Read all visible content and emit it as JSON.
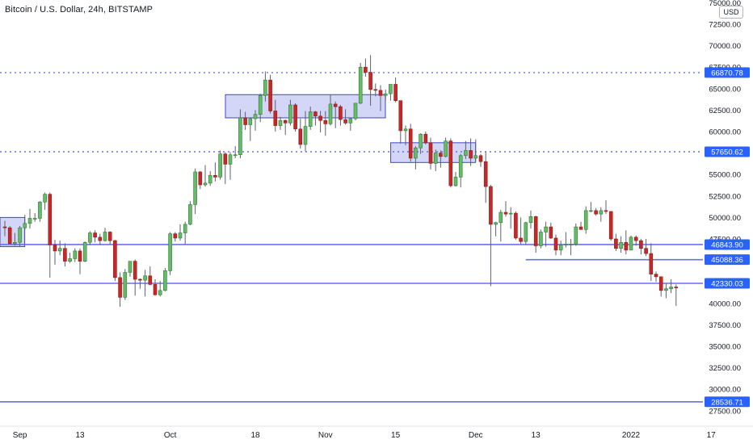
{
  "header": {
    "title": "Bitcoin / U.S. Dollar, 24h, BITSTAMP",
    "currency": "USD"
  },
  "colors": {
    "up": "#4caf50",
    "up_fill": "#66bb6a",
    "down": "#e53935",
    "down_fill": "#c62828",
    "wick": "#5d606b",
    "level_line": "#6a6fe8",
    "level_label_bg": "#2962ff",
    "zone_fill": "#c5c8f5",
    "zone_border": "#3f44c8",
    "axis_text": "#131722"
  },
  "chart_data": {
    "type": "candlestick",
    "symbol": "Bitcoin / U.S. Dollar",
    "interval": "24h",
    "exchange": "BITSTAMP",
    "y_axis": {
      "ticks": [
        27500,
        30000,
        32500,
        35000,
        37500,
        40000,
        42500,
        45000,
        47500,
        50000,
        52500,
        55000,
        57500,
        60000,
        62500,
        65000,
        67500,
        70000,
        72500,
        75000
      ],
      "tick_labels": [
        "27500.00",
        "30000.00",
        "32500.00",
        "35000.00",
        "37500.00",
        "40000.00",
        "42500.00",
        "45000.00",
        "47500.00",
        "50000.00",
        "52500.00",
        "55000.00",
        "57500.00",
        "60000.00",
        "62500.00",
        "65000.00",
        "67500.00",
        "70000.00",
        "72500.00",
        "75000.00"
      ],
      "ylim": [
        26800,
        76200
      ]
    },
    "x_axis": {
      "tick_labels": [
        "Sep",
        "13",
        "Oct",
        "18",
        "Nov",
        "15",
        "Dec",
        "13",
        "2022",
        "17"
      ],
      "tick_dates": [
        "2021-09-01",
        "2021-09-13",
        "2021-10-01",
        "2021-10-18",
        "2021-11-01",
        "2021-11-15",
        "2021-12-01",
        "2021-12-13",
        "2022-01-01",
        "2022-01-17"
      ]
    },
    "levels": [
      {
        "value": 66870.78,
        "label": "66870.78",
        "style": "dotted"
      },
      {
        "value": 57650.62,
        "label": "57650.62",
        "style": "dotted"
      },
      {
        "value": 46843.9,
        "label": "46843.90",
        "style": "solid"
      },
      {
        "value": 45088.36,
        "label": "45088.36",
        "style": "solid",
        "from_date": "2021-12-11"
      },
      {
        "value": 42330.03,
        "label": "42330.03",
        "style": "solid"
      },
      {
        "value": 28536.71,
        "label": "28536.71",
        "style": "solid"
      }
    ],
    "zones": [
      {
        "from_date": "2021-08-29",
        "to_date": "2021-09-01",
        "low": 46600,
        "high": 50000
      },
      {
        "from_date": "2021-10-13",
        "to_date": "2021-11-12",
        "low": 61600,
        "high": 64300
      },
      {
        "from_date": "2021-11-15",
        "to_date": "2021-11-30",
        "low": 56400,
        "high": 58700
      }
    ],
    "candles_note": "OHLC in USD, daily, estimated from gridlines",
    "candles": [
      {
        "date": "2021-08-29",
        "o": 48900,
        "h": 49600,
        "l": 47800,
        "c": 48800
      },
      {
        "date": "2021-08-30",
        "o": 48800,
        "h": 49000,
        "l": 46900,
        "c": 46950
      },
      {
        "date": "2021-08-31",
        "o": 46950,
        "h": 48200,
        "l": 46700,
        "c": 47100
      },
      {
        "date": "2021-09-01",
        "o": 47100,
        "h": 49000,
        "l": 46600,
        "c": 48800
      },
      {
        "date": "2021-09-02",
        "o": 48800,
        "h": 50300,
        "l": 48500,
        "c": 49300
      },
      {
        "date": "2021-09-03",
        "o": 49300,
        "h": 51000,
        "l": 48700,
        "c": 49900
      },
      {
        "date": "2021-09-04",
        "o": 49900,
        "h": 50500,
        "l": 49500,
        "c": 49900
      },
      {
        "date": "2021-09-05",
        "o": 49900,
        "h": 51900,
        "l": 49500,
        "c": 51800
      },
      {
        "date": "2021-09-06",
        "o": 51800,
        "h": 52900,
        "l": 50900,
        "c": 52700
      },
      {
        "date": "2021-09-07",
        "o": 52700,
        "h": 52900,
        "l": 43000,
        "c": 46800
      },
      {
        "date": "2021-09-08",
        "o": 46800,
        "h": 47400,
        "l": 44500,
        "c": 46100
      },
      {
        "date": "2021-09-09",
        "o": 46100,
        "h": 47300,
        "l": 45600,
        "c": 46400
      },
      {
        "date": "2021-09-10",
        "o": 46400,
        "h": 47000,
        "l": 44300,
        "c": 44900
      },
      {
        "date": "2021-09-11",
        "o": 44900,
        "h": 45900,
        "l": 44700,
        "c": 45200
      },
      {
        "date": "2021-09-12",
        "o": 45200,
        "h": 46400,
        "l": 44800,
        "c": 46100
      },
      {
        "date": "2021-09-13",
        "o": 46100,
        "h": 46400,
        "l": 43400,
        "c": 44900
      },
      {
        "date": "2021-09-14",
        "o": 44900,
        "h": 47200,
        "l": 44800,
        "c": 47100
      },
      {
        "date": "2021-09-15",
        "o": 47100,
        "h": 48400,
        "l": 46800,
        "c": 48200
      },
      {
        "date": "2021-09-16",
        "o": 48200,
        "h": 48500,
        "l": 47100,
        "c": 47700
      },
      {
        "date": "2021-09-17",
        "o": 47700,
        "h": 48100,
        "l": 46800,
        "c": 47300
      },
      {
        "date": "2021-09-18",
        "o": 47300,
        "h": 48800,
        "l": 47200,
        "c": 48300
      },
      {
        "date": "2021-09-19",
        "o": 48300,
        "h": 48400,
        "l": 46900,
        "c": 47300
      },
      {
        "date": "2021-09-20",
        "o": 47300,
        "h": 47400,
        "l": 42600,
        "c": 43000
      },
      {
        "date": "2021-09-21",
        "o": 43000,
        "h": 43600,
        "l": 39600,
        "c": 40700
      },
      {
        "date": "2021-09-22",
        "o": 40700,
        "h": 44000,
        "l": 40400,
        "c": 43600
      },
      {
        "date": "2021-09-23",
        "o": 43600,
        "h": 44900,
        "l": 43100,
        "c": 44900
      },
      {
        "date": "2021-09-24",
        "o": 44900,
        "h": 45100,
        "l": 40900,
        "c": 42800
      },
      {
        "date": "2021-09-25",
        "o": 42800,
        "h": 42900,
        "l": 41700,
        "c": 42700
      },
      {
        "date": "2021-09-26",
        "o": 42700,
        "h": 43900,
        "l": 40800,
        "c": 43200
      },
      {
        "date": "2021-09-27",
        "o": 43200,
        "h": 44300,
        "l": 42100,
        "c": 42200
      },
      {
        "date": "2021-09-28",
        "o": 42200,
        "h": 42800,
        "l": 40900,
        "c": 41000
      },
      {
        "date": "2021-09-29",
        "o": 41000,
        "h": 42600,
        "l": 40800,
        "c": 41500
      },
      {
        "date": "2021-09-30",
        "o": 41500,
        "h": 44100,
        "l": 41400,
        "c": 43800
      },
      {
        "date": "2021-10-01",
        "o": 43800,
        "h": 48300,
        "l": 43300,
        "c": 48100
      },
      {
        "date": "2021-10-02",
        "o": 48100,
        "h": 48300,
        "l": 47200,
        "c": 47600
      },
      {
        "date": "2021-10-03",
        "o": 47600,
        "h": 49200,
        "l": 47300,
        "c": 48200
      },
      {
        "date": "2021-10-04",
        "o": 48200,
        "h": 49500,
        "l": 46900,
        "c": 49200
      },
      {
        "date": "2021-10-05",
        "o": 49200,
        "h": 51900,
        "l": 49100,
        "c": 51500
      },
      {
        "date": "2021-10-06",
        "o": 51500,
        "h": 55700,
        "l": 50400,
        "c": 55300
      },
      {
        "date": "2021-10-07",
        "o": 55300,
        "h": 55400,
        "l": 53300,
        "c": 53800
      },
      {
        "date": "2021-10-08",
        "o": 53800,
        "h": 56100,
        "l": 53600,
        "c": 54000
      },
      {
        "date": "2021-10-09",
        "o": 54000,
        "h": 55400,
        "l": 53700,
        "c": 54900
      },
      {
        "date": "2021-10-10",
        "o": 54900,
        "h": 56400,
        "l": 54200,
        "c": 54700
      },
      {
        "date": "2021-10-11",
        "o": 54700,
        "h": 57800,
        "l": 54400,
        "c": 57400
      },
      {
        "date": "2021-10-12",
        "o": 57400,
        "h": 57600,
        "l": 53900,
        "c": 56200
      },
      {
        "date": "2021-10-13",
        "o": 56200,
        "h": 57600,
        "l": 54400,
        "c": 57300
      },
      {
        "date": "2021-10-14",
        "o": 57300,
        "h": 58300,
        "l": 56900,
        "c": 57300
      },
      {
        "date": "2021-10-15",
        "o": 57300,
        "h": 62600,
        "l": 56900,
        "c": 61600
      },
      {
        "date": "2021-10-16",
        "o": 61600,
        "h": 62300,
        "l": 60200,
        "c": 60800
      },
      {
        "date": "2021-10-17",
        "o": 60800,
        "h": 61600,
        "l": 58900,
        "c": 61500
      },
      {
        "date": "2021-10-18",
        "o": 61500,
        "h": 62500,
        "l": 60100,
        "c": 62000
      },
      {
        "date": "2021-10-19",
        "o": 62000,
        "h": 64400,
        "l": 61100,
        "c": 64200
      },
      {
        "date": "2021-10-20",
        "o": 64200,
        "h": 67000,
        "l": 63500,
        "c": 66000
      },
      {
        "date": "2021-10-21",
        "o": 66000,
        "h": 66600,
        "l": 62100,
        "c": 62400
      },
      {
        "date": "2021-10-22",
        "o": 62400,
        "h": 63700,
        "l": 60000,
        "c": 60700
      },
      {
        "date": "2021-10-23",
        "o": 60700,
        "h": 61700,
        "l": 60200,
        "c": 61300
      },
      {
        "date": "2021-10-24",
        "o": 61300,
        "h": 61400,
        "l": 59600,
        "c": 61000
      },
      {
        "date": "2021-10-25",
        "o": 61000,
        "h": 63700,
        "l": 60700,
        "c": 63100
      },
      {
        "date": "2021-10-26",
        "o": 63100,
        "h": 63300,
        "l": 60000,
        "c": 60300
      },
      {
        "date": "2021-10-27",
        "o": 60300,
        "h": 61500,
        "l": 58000,
        "c": 58500
      },
      {
        "date": "2021-10-28",
        "o": 58500,
        "h": 62400,
        "l": 57700,
        "c": 60600
      },
      {
        "date": "2021-10-29",
        "o": 60600,
        "h": 62900,
        "l": 60200,
        "c": 62300
      },
      {
        "date": "2021-10-30",
        "o": 62300,
        "h": 62400,
        "l": 60700,
        "c": 61800
      },
      {
        "date": "2021-10-31",
        "o": 61800,
        "h": 62400,
        "l": 59900,
        "c": 61300
      },
      {
        "date": "2021-11-01",
        "o": 61300,
        "h": 62400,
        "l": 59500,
        "c": 60900
      },
      {
        "date": "2021-11-02",
        "o": 60900,
        "h": 64300,
        "l": 60700,
        "c": 63200
      },
      {
        "date": "2021-11-03",
        "o": 63200,
        "h": 63500,
        "l": 60400,
        "c": 62900
      },
      {
        "date": "2021-11-04",
        "o": 62900,
        "h": 63100,
        "l": 60700,
        "c": 61400
      },
      {
        "date": "2021-11-05",
        "o": 61400,
        "h": 62600,
        "l": 60800,
        "c": 61000
      },
      {
        "date": "2021-11-06",
        "o": 61000,
        "h": 61600,
        "l": 60100,
        "c": 61500
      },
      {
        "date": "2021-11-07",
        "o": 61500,
        "h": 63300,
        "l": 61300,
        "c": 63300
      },
      {
        "date": "2021-11-08",
        "o": 63300,
        "h": 68000,
        "l": 63200,
        "c": 67500
      },
      {
        "date": "2021-11-09",
        "o": 67500,
        "h": 68500,
        "l": 66400,
        "c": 66900
      },
      {
        "date": "2021-11-10",
        "o": 66900,
        "h": 68900,
        "l": 63000,
        "c": 64900
      },
      {
        "date": "2021-11-11",
        "o": 64900,
        "h": 65600,
        "l": 64100,
        "c": 64800
      },
      {
        "date": "2021-11-12",
        "o": 64800,
        "h": 65400,
        "l": 62400,
        "c": 64200
      },
      {
        "date": "2021-11-13",
        "o": 64200,
        "h": 64900,
        "l": 63600,
        "c": 64400
      },
      {
        "date": "2021-11-14",
        "o": 64400,
        "h": 65500,
        "l": 63600,
        "c": 65500
      },
      {
        "date": "2021-11-15",
        "o": 65500,
        "h": 66300,
        "l": 63400,
        "c": 63600
      },
      {
        "date": "2021-11-16",
        "o": 63600,
        "h": 63600,
        "l": 58600,
        "c": 60100
      },
      {
        "date": "2021-11-17",
        "o": 60100,
        "h": 60700,
        "l": 58400,
        "c": 60300
      },
      {
        "date": "2021-11-18",
        "o": 60300,
        "h": 60900,
        "l": 56500,
        "c": 56900
      },
      {
        "date": "2021-11-19",
        "o": 56900,
        "h": 58300,
        "l": 55600,
        "c": 58100
      },
      {
        "date": "2021-11-20",
        "o": 58100,
        "h": 59800,
        "l": 57400,
        "c": 59700
      },
      {
        "date": "2021-11-21",
        "o": 59700,
        "h": 60000,
        "l": 58500,
        "c": 58700
      },
      {
        "date": "2021-11-22",
        "o": 58700,
        "h": 59300,
        "l": 55600,
        "c": 56300
      },
      {
        "date": "2021-11-23",
        "o": 56300,
        "h": 57900,
        "l": 55400,
        "c": 57500
      },
      {
        "date": "2021-11-24",
        "o": 57500,
        "h": 57800,
        "l": 55800,
        "c": 57100
      },
      {
        "date": "2021-11-25",
        "o": 57100,
        "h": 59300,
        "l": 57000,
        "c": 58900
      },
      {
        "date": "2021-11-26",
        "o": 58900,
        "h": 59200,
        "l": 53500,
        "c": 53700
      },
      {
        "date": "2021-11-27",
        "o": 53700,
        "h": 55300,
        "l": 53600,
        "c": 54700
      },
      {
        "date": "2021-11-28",
        "o": 54700,
        "h": 57400,
        "l": 53500,
        "c": 57200
      },
      {
        "date": "2021-11-29",
        "o": 57200,
        "h": 58900,
        "l": 56800,
        "c": 57800
      },
      {
        "date": "2021-11-30",
        "o": 57800,
        "h": 59200,
        "l": 56000,
        "c": 56900
      },
      {
        "date": "2021-12-01",
        "o": 56900,
        "h": 59100,
        "l": 56500,
        "c": 57200
      },
      {
        "date": "2021-12-02",
        "o": 57200,
        "h": 57400,
        "l": 55900,
        "c": 56500
      },
      {
        "date": "2021-12-03",
        "o": 56500,
        "h": 57600,
        "l": 51700,
        "c": 53600
      },
      {
        "date": "2021-12-04",
        "o": 53600,
        "h": 53800,
        "l": 42000,
        "c": 49200
      },
      {
        "date": "2021-12-05",
        "o": 49200,
        "h": 49500,
        "l": 47800,
        "c": 49400
      },
      {
        "date": "2021-12-06",
        "o": 49400,
        "h": 50900,
        "l": 47200,
        "c": 50600
      },
      {
        "date": "2021-12-07",
        "o": 50600,
        "h": 51900,
        "l": 50100,
        "c": 50400
      },
      {
        "date": "2021-12-08",
        "o": 50400,
        "h": 51200,
        "l": 48700,
        "c": 50500
      },
      {
        "date": "2021-12-09",
        "o": 50500,
        "h": 50700,
        "l": 47400,
        "c": 47600
      },
      {
        "date": "2021-12-10",
        "o": 47600,
        "h": 50000,
        "l": 46900,
        "c": 47200
      },
      {
        "date": "2021-12-11",
        "o": 47200,
        "h": 49500,
        "l": 46800,
        "c": 49400
      },
      {
        "date": "2021-12-12",
        "o": 49400,
        "h": 50800,
        "l": 48700,
        "c": 50100
      },
      {
        "date": "2021-12-13",
        "o": 50100,
        "h": 50200,
        "l": 45900,
        "c": 46700
      },
      {
        "date": "2021-12-14",
        "o": 46700,
        "h": 48600,
        "l": 46400,
        "c": 48300
      },
      {
        "date": "2021-12-15",
        "o": 48300,
        "h": 49500,
        "l": 46600,
        "c": 48900
      },
      {
        "date": "2021-12-16",
        "o": 48900,
        "h": 49400,
        "l": 47500,
        "c": 47600
      },
      {
        "date": "2021-12-17",
        "o": 47600,
        "h": 48000,
        "l": 45600,
        "c": 46200
      },
      {
        "date": "2021-12-18",
        "o": 46200,
        "h": 47300,
        "l": 45600,
        "c": 46800
      },
      {
        "date": "2021-12-19",
        "o": 46800,
        "h": 48300,
        "l": 46500,
        "c": 46900
      },
      {
        "date": "2021-12-20",
        "o": 46900,
        "h": 47500,
        "l": 45600,
        "c": 46900
      },
      {
        "date": "2021-12-21",
        "o": 46900,
        "h": 49300,
        "l": 46700,
        "c": 48900
      },
      {
        "date": "2021-12-22",
        "o": 48900,
        "h": 49500,
        "l": 48600,
        "c": 48600
      },
      {
        "date": "2021-12-23",
        "o": 48600,
        "h": 51300,
        "l": 48100,
        "c": 50800
      },
      {
        "date": "2021-12-24",
        "o": 50800,
        "h": 51800,
        "l": 50600,
        "c": 50800
      },
      {
        "date": "2021-12-25",
        "o": 50800,
        "h": 51100,
        "l": 50200,
        "c": 50400
      },
      {
        "date": "2021-12-26",
        "o": 50400,
        "h": 51200,
        "l": 49500,
        "c": 50800
      },
      {
        "date": "2021-12-27",
        "o": 50800,
        "h": 52000,
        "l": 50400,
        "c": 50700
      },
      {
        "date": "2021-12-28",
        "o": 50700,
        "h": 50700,
        "l": 47300,
        "c": 47500
      },
      {
        "date": "2021-12-29",
        "o": 47500,
        "h": 48100,
        "l": 46100,
        "c": 46400
      },
      {
        "date": "2021-12-30",
        "o": 46400,
        "h": 47800,
        "l": 45900,
        "c": 47100
      },
      {
        "date": "2021-12-31",
        "o": 47100,
        "h": 48500,
        "l": 45700,
        "c": 46200
      },
      {
        "date": "2022-01-01",
        "o": 46200,
        "h": 47900,
        "l": 46200,
        "c": 47700
      },
      {
        "date": "2022-01-02",
        "o": 47700,
        "h": 47900,
        "l": 46700,
        "c": 47300
      },
      {
        "date": "2022-01-03",
        "o": 47300,
        "h": 47500,
        "l": 45700,
        "c": 46400
      },
      {
        "date": "2022-01-04",
        "o": 46400,
        "h": 47500,
        "l": 45500,
        "c": 45800
      },
      {
        "date": "2022-01-05",
        "o": 45800,
        "h": 47000,
        "l": 42600,
        "c": 43400
      },
      {
        "date": "2022-01-06",
        "o": 43400,
        "h": 43700,
        "l": 42500,
        "c": 43100
      },
      {
        "date": "2022-01-07",
        "o": 43100,
        "h": 43100,
        "l": 40800,
        "c": 41500
      },
      {
        "date": "2022-01-08",
        "o": 41500,
        "h": 42300,
        "l": 40600,
        "c": 41700
      },
      {
        "date": "2022-01-09",
        "o": 41700,
        "h": 42800,
        "l": 41200,
        "c": 41900
      },
      {
        "date": "2022-01-10",
        "o": 41900,
        "h": 42200,
        "l": 39700,
        "c": 41800
      }
    ]
  }
}
